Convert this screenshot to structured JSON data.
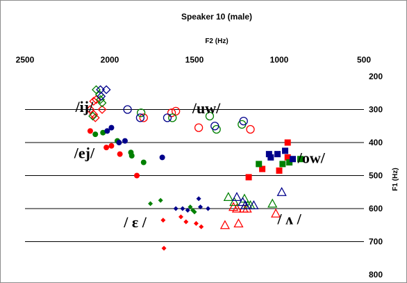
{
  "chart_data": {
    "type": "scatter",
    "title": "Speaker 10 (male)",
    "xlabel": "F2 (Hz)",
    "ylabel": "F1 (Hz)",
    "xlim": [
      2500,
      500
    ],
    "ylim": [
      200,
      800
    ],
    "x_axis_position": "top",
    "y_axis_position": "right",
    "x_reversed": true,
    "y_reversed": true,
    "xticks": [
      "2500",
      "2000",
      "1500",
      "1000",
      "500"
    ],
    "yticks": [
      "200",
      "300",
      "400",
      "500",
      "600",
      "700",
      "800"
    ],
    "ytick_values": [
      200,
      300,
      400,
      500,
      600,
      700,
      800
    ],
    "xtick_values": [
      2500,
      2000,
      1500,
      1000,
      500
    ],
    "grid": "horizontal",
    "colors": {
      "red": "#ff0000",
      "green": "#008000",
      "blue": "#00008b",
      "grid": "#000000"
    },
    "annotations": [
      {
        "text": "/ij/",
        "x": 2150,
        "y": 290
      },
      {
        "text": "/uw/",
        "x": 1430,
        "y": 295
      },
      {
        "text": "/ej/",
        "x": 2150,
        "y": 430
      },
      {
        "text": "/ow/",
        "x": 810,
        "y": 445
      },
      {
        "text": "/ ε /",
        "x": 1850,
        "y": 640
      },
      {
        "text": "/ ʌ /",
        "x": 940,
        "y": 630
      }
    ],
    "series": [
      {
        "marker": "diamond-open",
        "color": "red",
        "points": [
          [
            2115,
            300
          ],
          [
            2095,
            275
          ],
          [
            2080,
            270
          ],
          [
            2085,
            325
          ],
          [
            2095,
            315
          ],
          [
            2045,
            300
          ]
        ]
      },
      {
        "marker": "diamond-open",
        "color": "green",
        "points": [
          [
            2080,
            240
          ],
          [
            2060,
            255
          ],
          [
            2055,
            270
          ],
          [
            2045,
            280
          ],
          [
            2100,
            320
          ]
        ]
      },
      {
        "marker": "diamond-open",
        "color": "blue",
        "points": [
          [
            2055,
            240
          ],
          [
            2020,
            240
          ],
          [
            2050,
            260
          ]
        ]
      },
      {
        "marker": "circle-open",
        "color": "red",
        "points": [
          [
            1800,
            325
          ],
          [
            1635,
            310
          ],
          [
            1610,
            305
          ],
          [
            1475,
            355
          ],
          [
            1170,
            360
          ]
        ]
      },
      {
        "marker": "circle-open",
        "color": "green",
        "points": [
          [
            1815,
            310
          ],
          [
            1630,
            325
          ],
          [
            1410,
            320
          ],
          [
            1370,
            360
          ],
          [
            1220,
            345
          ]
        ]
      },
      {
        "marker": "circle-open",
        "color": "blue",
        "points": [
          [
            1895,
            300
          ],
          [
            1820,
            325
          ],
          [
            1660,
            325
          ],
          [
            1380,
            350
          ],
          [
            1210,
            335
          ]
        ]
      },
      {
        "marker": "circle-filled",
        "color": "red",
        "points": [
          [
            2115,
            365
          ],
          [
            2020,
            415
          ],
          [
            1990,
            410
          ],
          [
            1940,
            435
          ],
          [
            1840,
            500
          ]
        ]
      },
      {
        "marker": "circle-filled",
        "color": "green",
        "points": [
          [
            2085,
            375
          ],
          [
            2040,
            370
          ],
          [
            1955,
            395
          ],
          [
            1875,
            430
          ],
          [
            1870,
            440
          ],
          [
            1800,
            460
          ]
        ]
      },
      {
        "marker": "circle-filled",
        "color": "blue",
        "points": [
          [
            2015,
            365
          ],
          [
            1990,
            355
          ],
          [
            1945,
            400
          ],
          [
            1910,
            395
          ],
          [
            1690,
            445
          ]
        ]
      },
      {
        "marker": "square-filled",
        "color": "red",
        "points": [
          [
            950,
            400
          ],
          [
            1100,
            480
          ],
          [
            1000,
            485
          ],
          [
            950,
            445
          ],
          [
            1180,
            505
          ]
        ]
      },
      {
        "marker": "square-filled",
        "color": "green",
        "points": [
          [
            1120,
            465
          ],
          [
            980,
            465
          ],
          [
            940,
            460
          ],
          [
            875,
            450
          ]
        ]
      },
      {
        "marker": "square-filled",
        "color": "blue",
        "points": [
          [
            1060,
            435
          ],
          [
            1010,
            435
          ],
          [
            965,
            425
          ],
          [
            1050,
            445
          ],
          [
            920,
            450
          ]
        ]
      },
      {
        "marker": "diamond-filled",
        "color": "red",
        "points": [
          [
            1685,
            635
          ],
          [
            1580,
            625
          ],
          [
            1550,
            640
          ],
          [
            1490,
            645
          ],
          [
            1460,
            655
          ],
          [
            1680,
            720
          ]
        ]
      },
      {
        "marker": "diamond-filled",
        "color": "green",
        "points": [
          [
            1760,
            585
          ],
          [
            1700,
            575
          ],
          [
            1525,
            595
          ],
          [
            1510,
            605
          ],
          [
            1500,
            610
          ]
        ]
      },
      {
        "marker": "diamond-filled",
        "color": "blue",
        "points": [
          [
            1610,
            600
          ],
          [
            1570,
            600
          ],
          [
            1540,
            605
          ],
          [
            1475,
            570
          ],
          [
            1465,
            595
          ],
          [
            1420,
            600
          ]
        ]
      },
      {
        "marker": "triangle-open",
        "color": "red",
        "points": [
          [
            1320,
            650
          ],
          [
            1270,
            595
          ],
          [
            1250,
            600
          ],
          [
            1210,
            600
          ],
          [
            1190,
            600
          ],
          [
            1020,
            615
          ],
          [
            1240,
            645
          ]
        ]
      },
      {
        "marker": "triangle-open",
        "color": "green",
        "points": [
          [
            1300,
            565
          ],
          [
            1265,
            580
          ],
          [
            1205,
            570
          ],
          [
            1185,
            590
          ],
          [
            1170,
            590
          ],
          [
            1040,
            585
          ]
        ]
      },
      {
        "marker": "triangle-open",
        "color": "blue",
        "points": [
          [
            1250,
            565
          ],
          [
            1215,
            580
          ],
          [
            1200,
            590
          ],
          [
            1150,
            590
          ],
          [
            985,
            550
          ]
        ]
      }
    ]
  }
}
